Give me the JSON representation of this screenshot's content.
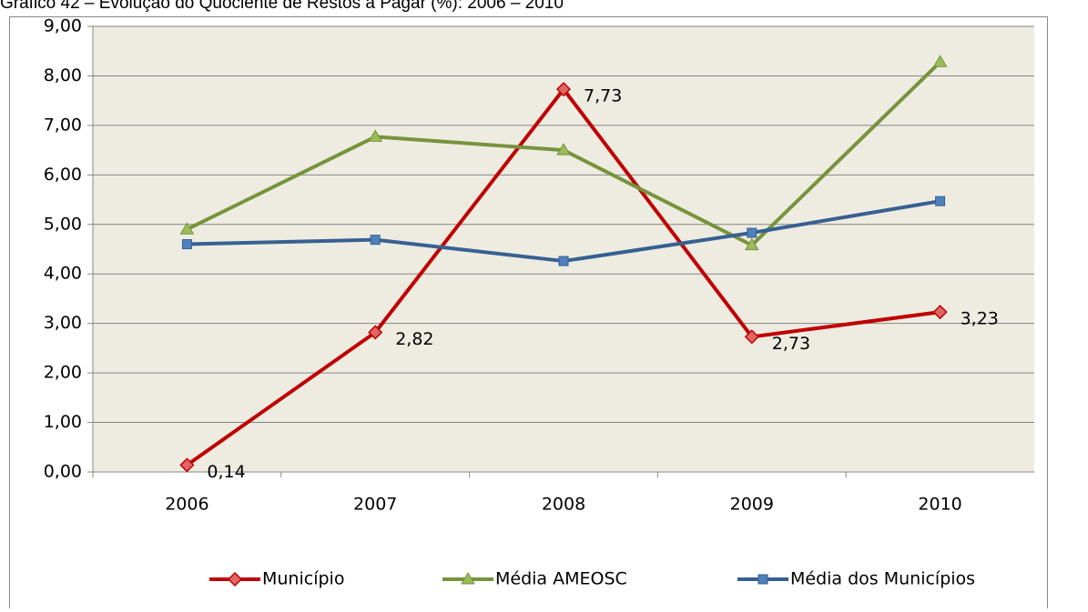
{
  "chart_data": {
    "type": "line",
    "title": "Gráfico 42 – Evolução do Quociente de Restos a Pagar (%): 2006 – 2010",
    "categories": [
      "2006",
      "2007",
      "2008",
      "2009",
      "2010"
    ],
    "series": [
      {
        "name": "Município",
        "color": "#c00000",
        "marker": "diamond",
        "values": [
          0.14,
          2.82,
          7.73,
          2.73,
          3.23
        ],
        "value_labels": [
          "0,14",
          "2,82",
          "7,73",
          "2,73",
          "3,23"
        ]
      },
      {
        "name": "Média AMEOSC",
        "color": "#77933c",
        "marker": "triangle",
        "values": [
          4.9,
          6.77,
          6.5,
          4.58,
          8.28
        ]
      },
      {
        "name": "Média dos Municípios",
        "color": "#376092",
        "marker": "square",
        "values": [
          4.6,
          4.69,
          4.26,
          4.83,
          5.47
        ]
      }
    ],
    "ylim": [
      0,
      9
    ],
    "yticks": [
      {
        "value": 0,
        "label": "0,00"
      },
      {
        "value": 1,
        "label": "1,00"
      },
      {
        "value": 2,
        "label": "2,00"
      },
      {
        "value": 3,
        "label": "3,00"
      },
      {
        "value": 4,
        "label": "4,00"
      },
      {
        "value": 5,
        "label": "5,00"
      },
      {
        "value": 6,
        "label": "6,00"
      },
      {
        "value": 7,
        "label": "7,00"
      },
      {
        "value": 8,
        "label": "8,00"
      },
      {
        "value": 9,
        "label": "9,00"
      }
    ],
    "grid": true,
    "legend": "bottom"
  }
}
